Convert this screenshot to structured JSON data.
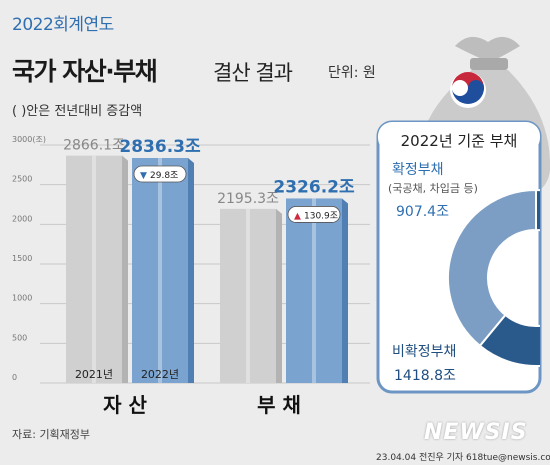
{
  "header": {
    "year_label": "2022회계연도",
    "title": "국가 자산·부채",
    "subtitle": "결산 결과",
    "unit": "단위: 원",
    "note": "( )안은 전년대비 증감액"
  },
  "footer": {
    "source": "자료: 기획재정부",
    "credit": "23.04.04 전진우 기자 618tue@newsis.com",
    "logo": "NEWSIS"
  },
  "colors": {
    "accent": "#2f6fb0",
    "bar_2021": "#d0d0d0",
    "bar_2022": "#7aa3cf",
    "donut_confirmed": "#7d9ec4",
    "donut_unconfirmed": "#2a5a8c"
  },
  "chart_data": [
    {
      "type": "bar",
      "categories": [
        "자 산",
        "부 채"
      ],
      "series": [
        {
          "name": "2021년",
          "values": [
            2866.1,
            2195.3
          ],
          "labels": [
            "2866.1조",
            "2195.3조"
          ]
        },
        {
          "name": "2022년",
          "values": [
            2836.3,
            2326.2
          ],
          "labels": [
            "2836.3조",
            "2326.2조"
          ]
        }
      ],
      "changes": [
        {
          "symbol": "▼",
          "text": "29.8조",
          "direction": "down"
        },
        {
          "symbol": "▲",
          "text": "130.9조",
          "direction": "up"
        }
      ],
      "y_ticks": [
        {
          "value": 3000,
          "label": "3000(조)"
        },
        {
          "value": 2500,
          "label": "2500"
        },
        {
          "value": 2000,
          "label": "2000"
        },
        {
          "value": 1500,
          "label": "1500"
        },
        {
          "value": 1000,
          "label": "1000"
        },
        {
          "value": 500,
          "label": "500"
        },
        {
          "value": 0,
          "label": "0"
        }
      ],
      "ylim": [
        0,
        3000
      ],
      "grid": true
    },
    {
      "type": "pie",
      "title": "2022년 기준 부채",
      "slices": [
        {
          "name": "확정부채",
          "detail": "(국공채, 차입금 등)",
          "value": 907.4,
          "label": "907.4조"
        },
        {
          "name": "비확정부채",
          "value": 1418.8,
          "label": "1418.8조"
        }
      ]
    }
  ]
}
